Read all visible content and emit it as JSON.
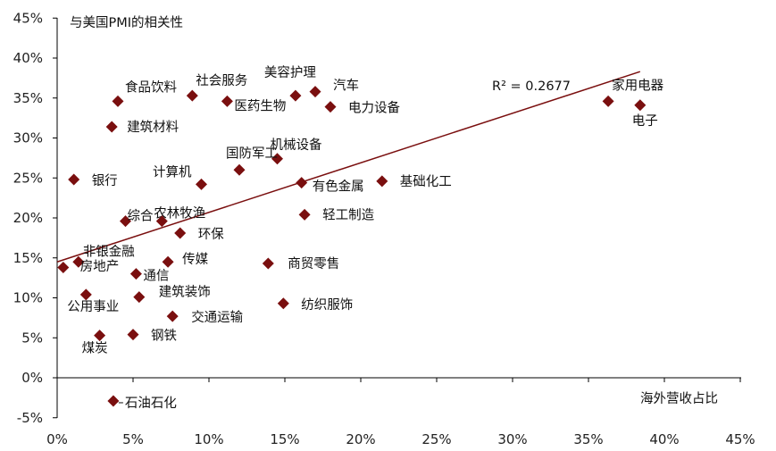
{
  "chart_data": {
    "type": "scatter",
    "ylabel": "与美国PMI的相关性",
    "xlabel": "海外营收占比",
    "xlim": [
      0,
      45
    ],
    "ylim": [
      -5,
      45
    ],
    "x_ticks": [
      "0%",
      "5%",
      "10%",
      "15%",
      "20%",
      "25%",
      "30%",
      "35%",
      "40%",
      "45%"
    ],
    "y_ticks": [
      "-5%",
      "0%",
      "5%",
      "10%",
      "15%",
      "20%",
      "25%",
      "30%",
      "35%",
      "40%",
      "45%"
    ],
    "marker_color": "#7a0f0f",
    "trendline": {
      "x": [
        0,
        38.4
      ],
      "y": [
        14.5,
        38.3
      ],
      "color": "#7a0f0f"
    },
    "annotation": "R² = 0.2677",
    "grid": false,
    "points": [
      {
        "label": "家用电器",
        "x": 36.3,
        "y": 34.6
      },
      {
        "label": "电子",
        "x": 38.4,
        "y": 34.1
      },
      {
        "label": "食品饮料",
        "x": 4.0,
        "y": 34.6
      },
      {
        "label": "社会服务",
        "x": 8.9,
        "y": 35.3
      },
      {
        "label": "医药生物",
        "x": 11.2,
        "y": 34.6
      },
      {
        "label": "美容护理",
        "x": 15.7,
        "y": 35.3
      },
      {
        "label": "汽车",
        "x": 17.0,
        "y": 35.8
      },
      {
        "label": "电力设备",
        "x": 18.0,
        "y": 33.9
      },
      {
        "label": "建筑材料",
        "x": 3.6,
        "y": 31.4
      },
      {
        "label": "国防军工",
        "x": 12.0,
        "y": 26.0
      },
      {
        "label": "机械设备",
        "x": 14.5,
        "y": 27.4
      },
      {
        "label": "计算机",
        "x": 9.5,
        "y": 24.2
      },
      {
        "label": "银行",
        "x": 1.1,
        "y": 24.8
      },
      {
        "label": "有色金属",
        "x": 16.1,
        "y": 24.4
      },
      {
        "label": "基础化工",
        "x": 21.4,
        "y": 24.6
      },
      {
        "label": "综合",
        "x": 4.5,
        "y": 19.6
      },
      {
        "label": "农林牧渔",
        "x": 6.9,
        "y": 19.6
      },
      {
        "label": "轻工制造",
        "x": 16.3,
        "y": 20.4
      },
      {
        "label": "环保",
        "x": 8.1,
        "y": 18.1
      },
      {
        "label": "非银金融",
        "x": 0.4,
        "y": 13.8
      },
      {
        "label": "房地产",
        "x": 1.4,
        "y": 14.5
      },
      {
        "label": "传媒",
        "x": 7.3,
        "y": 14.5
      },
      {
        "label": "通信",
        "x": 5.2,
        "y": 13.0
      },
      {
        "label": "商贸零售",
        "x": 13.9,
        "y": 14.3
      },
      {
        "label": "公用事业",
        "x": 1.9,
        "y": 10.4
      },
      {
        "label": "建筑装饰",
        "x": 5.4,
        "y": 10.1
      },
      {
        "label": "纺织服饰",
        "x": 14.9,
        "y": 9.3
      },
      {
        "label": "交通运输",
        "x": 7.6,
        "y": 7.7
      },
      {
        "label": "煤炭",
        "x": 2.8,
        "y": 5.3
      },
      {
        "label": "钢铁",
        "x": 5.0,
        "y": 5.4
      },
      {
        "label": "石油石化",
        "x": 3.7,
        "y": -2.9
      }
    ]
  }
}
